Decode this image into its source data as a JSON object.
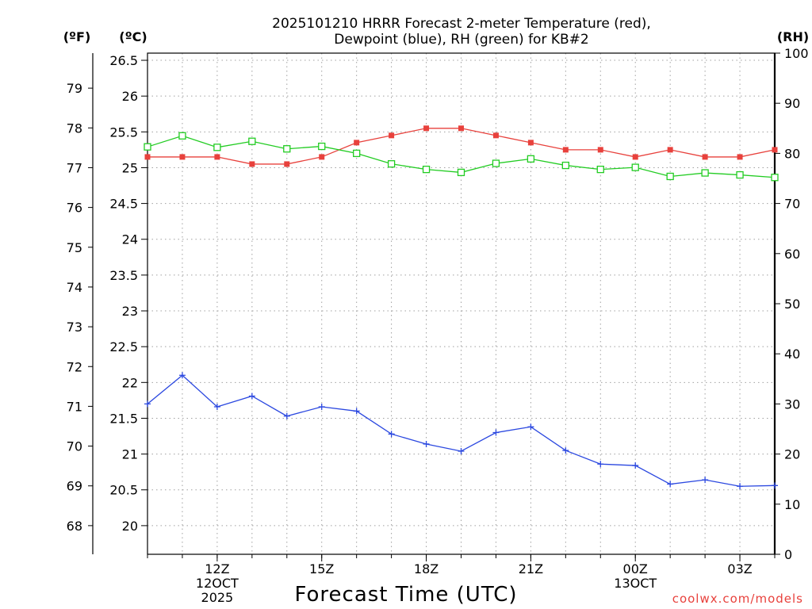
{
  "chart_data": {
    "type": "line",
    "title_lines": [
      "2025101210 HRRR Forecast 2-meter Temperature (red),",
      "Dewpoint (blue), RH (green) for KB#2"
    ],
    "xlabel": "Forecast Time (UTC)",
    "units": {
      "fahrenheit": "(ºF)",
      "celsius": "(ºC)",
      "rh": "(RH)"
    },
    "credit": "coolwx.com/models",
    "x_hours": [
      10,
      11,
      12,
      13,
      14,
      15,
      16,
      17,
      18,
      19,
      20,
      21,
      22,
      23,
      24,
      25,
      26,
      27,
      28
    ],
    "xlim": [
      10,
      28
    ],
    "x_ticks": [
      {
        "hour": 12,
        "lines": [
          "12Z",
          "12OCT",
          "2025"
        ]
      },
      {
        "hour": 15,
        "lines": [
          "15Z"
        ]
      },
      {
        "hour": 18,
        "lines": [
          "18Z"
        ]
      },
      {
        "hour": 21,
        "lines": [
          "21Z"
        ]
      },
      {
        "hour": 24,
        "lines": [
          "00Z",
          "13OCT"
        ]
      },
      {
        "hour": 27,
        "lines": [
          "03Z"
        ]
      }
    ],
    "celsius_axis": {
      "ylim": [
        19.6,
        26.6
      ],
      "ticks": [
        20,
        20.5,
        21,
        21.5,
        22,
        22.5,
        23,
        23.5,
        24,
        24.5,
        25,
        25.5,
        26,
        26.5
      ],
      "labels": [
        "20",
        "20.5",
        "21",
        "21.5",
        "22",
        "22.5",
        "23",
        "23.5",
        "24",
        "24.5",
        "25",
        "25.5",
        "26",
        "26.5"
      ]
    },
    "fahrenheit_axis": {
      "ticks": [
        68,
        69,
        70,
        71,
        72,
        73,
        74,
        75,
        76,
        77,
        78,
        79
      ],
      "labels": [
        "68",
        "69",
        "70",
        "71",
        "72",
        "73",
        "74",
        "75",
        "76",
        "77",
        "78",
        "79"
      ]
    },
    "rh_axis": {
      "ylim": [
        0,
        100
      ],
      "ticks": [
        0,
        10,
        20,
        30,
        40,
        50,
        60,
        70,
        80,
        90,
        100
      ],
      "labels": [
        "0",
        "10",
        "20",
        "30",
        "40",
        "50",
        "60",
        "70",
        "80",
        "90",
        "100"
      ]
    },
    "series": [
      {
        "name": "Temperature",
        "axis": "celsius",
        "color": "#e8413c",
        "marker": "filled-square",
        "values": [
          25.15,
          25.15,
          25.15,
          25.05,
          25.05,
          25.15,
          25.35,
          25.45,
          25.55,
          25.55,
          25.45,
          25.35,
          25.25,
          25.25,
          25.15,
          25.25,
          25.15,
          25.15,
          25.25
        ]
      },
      {
        "name": "Dewpoint",
        "axis": "celsius",
        "color": "#2b48e0",
        "marker": "plus",
        "values": [
          21.7,
          22.1,
          21.66,
          21.81,
          21.53,
          21.66,
          21.6,
          21.28,
          21.14,
          21.04,
          21.3,
          21.38,
          21.05,
          20.86,
          20.84,
          20.58,
          20.64,
          20.55,
          20.56
        ]
      },
      {
        "name": "RH",
        "axis": "rh",
        "color": "#22cc22",
        "marker": "open-square",
        "values": [
          81.3,
          83.5,
          81.2,
          82.4,
          80.9,
          81.4,
          80.0,
          77.9,
          76.8,
          76.2,
          78.0,
          78.9,
          77.6,
          76.8,
          77.2,
          75.4,
          76.1,
          75.7,
          75.2
        ]
      }
    ]
  }
}
